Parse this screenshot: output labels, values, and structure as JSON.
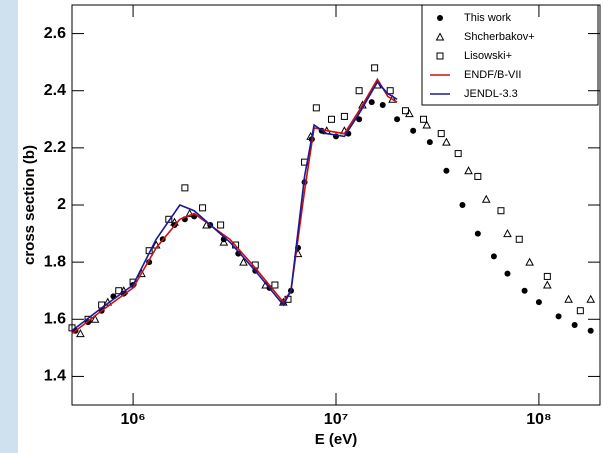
{
  "chart_data": {
    "type": "scatter",
    "xlabel": "E  (eV)",
    "ylabel": "cross section (b)",
    "xscale": "log",
    "xlim": [
      500000,
      200000000
    ],
    "ylim": [
      1.3,
      2.7
    ],
    "xticks": [
      {
        "value": 1000000,
        "label": "10⁶"
      },
      {
        "value": 10000000,
        "label": "10⁷"
      },
      {
        "value": 100000000,
        "label": "10⁸"
      }
    ],
    "yticks": [
      1.4,
      1.6,
      1.8,
      2,
      2.2,
      2.4,
      2.6
    ],
    "legend": "upper right",
    "series": [
      {
        "name": "This work",
        "marker": "circle",
        "color": "#000000",
        "x": [
          520000,
          600000,
          700000,
          800000,
          900000,
          1000000,
          1200000,
          1400000,
          1600000,
          1800000,
          2000000,
          2400000,
          2800000,
          3300000,
          4000000,
          4700000,
          5500000,
          6000000,
          6500000,
          7000000,
          7600000,
          8500000,
          10000000,
          11500000,
          13000000,
          15000000,
          17000000,
          20000000,
          24000000,
          29000000,
          35000000,
          42000000,
          50000000,
          60000000,
          70000000,
          85000000,
          100000000,
          125000000,
          150000000,
          180000000
        ],
        "values": [
          1.56,
          1.59,
          1.63,
          1.68,
          1.69,
          1.72,
          1.8,
          1.88,
          1.93,
          1.95,
          1.96,
          1.93,
          1.88,
          1.83,
          1.77,
          1.71,
          1.66,
          1.7,
          1.85,
          2.08,
          2.23,
          2.26,
          2.24,
          2.25,
          2.3,
          2.36,
          2.35,
          2.3,
          2.26,
          2.22,
          2.12,
          2.0,
          1.9,
          1.82,
          1.76,
          1.7,
          1.66,
          1.61,
          1.58,
          1.56
        ]
      },
      {
        "name": "Shcherbakov+",
        "marker": "triangle",
        "color": "#000000",
        "x": [
          550000,
          650000,
          750000,
          900000,
          1100000,
          1300000,
          1600000,
          1900000,
          2300000,
          2800000,
          3500000,
          4500000,
          5500000,
          6500000,
          7500000,
          9000000,
          11000000,
          13500000,
          16000000,
          19000000,
          23000000,
          28000000,
          35000000,
          45000000,
          55000000,
          70000000,
          90000000,
          110000000,
          140000000,
          180000000
        ],
        "values": [
          1.55,
          1.6,
          1.66,
          1.7,
          1.76,
          1.86,
          1.94,
          1.97,
          1.93,
          1.87,
          1.8,
          1.72,
          1.66,
          1.83,
          2.24,
          2.26,
          2.26,
          2.35,
          2.42,
          2.37,
          2.32,
          2.28,
          2.22,
          2.12,
          2.02,
          1.9,
          1.8,
          1.72,
          1.67,
          1.67
        ]
      },
      {
        "name": "Lisowski+",
        "marker": "square",
        "color": "#000000",
        "x": [
          500000,
          600000,
          700000,
          850000,
          1000000,
          1200000,
          1500000,
          1800000,
          2200000,
          2700000,
          3200000,
          4000000,
          5000000,
          5800000,
          7000000,
          8000000,
          9500000,
          11000000,
          13000000,
          15500000,
          18500000,
          22000000,
          27000000,
          33000000,
          40000000,
          50000000,
          65000000,
          80000000,
          110000000,
          160000000
        ],
        "values": [
          1.57,
          1.6,
          1.65,
          1.7,
          1.73,
          1.84,
          1.95,
          2.06,
          1.99,
          1.93,
          1.86,
          1.79,
          1.72,
          1.67,
          2.15,
          2.34,
          2.3,
          2.31,
          2.4,
          2.48,
          2.4,
          2.33,
          2.3,
          2.25,
          2.18,
          2.1,
          1.98,
          1.88,
          1.75,
          1.63
        ]
      },
      {
        "name": "ENDF/B-VII",
        "marker": "line",
        "color": "#cc1111",
        "x": [
          500000,
          700000,
          1000000,
          1300000,
          1700000,
          2000000,
          3000000,
          4000000,
          5500000,
          6000000,
          7000000,
          7800000,
          9000000,
          11000000,
          13000000,
          16000000,
          18000000,
          20000000
        ],
        "values": [
          1.55,
          1.63,
          1.71,
          1.85,
          1.95,
          1.97,
          1.88,
          1.78,
          1.66,
          1.7,
          2.05,
          2.27,
          2.26,
          2.25,
          2.33,
          2.44,
          2.38,
          2.36
        ]
      },
      {
        "name": "JENDL-3.3",
        "marker": "line",
        "color": "#1a1a99",
        "x": [
          500000,
          700000,
          1000000,
          1300000,
          1700000,
          2000000,
          3000000,
          4000000,
          5500000,
          6000000,
          7000000,
          7800000,
          9000000,
          11000000,
          13000000,
          16000000,
          18000000,
          20000000
        ],
        "values": [
          1.56,
          1.64,
          1.72,
          1.88,
          2.0,
          1.98,
          1.87,
          1.77,
          1.65,
          1.7,
          2.1,
          2.28,
          2.25,
          2.24,
          2.32,
          2.43,
          2.39,
          2.37
        ]
      }
    ]
  }
}
